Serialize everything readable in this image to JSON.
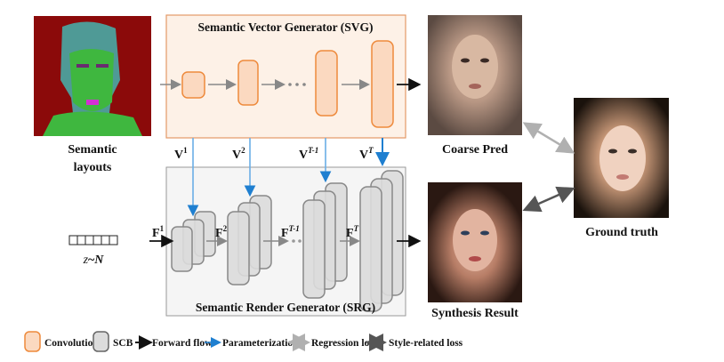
{
  "inputs": {
    "semantic_label_line1": "Semantic",
    "semantic_label_line2": "layouts",
    "noise_var": "z",
    "noise_tilde": "~",
    "noise_dist": "N"
  },
  "svg_module": {
    "title": "Semantic Vector Generator (SVG)"
  },
  "srg_module": {
    "title": "Semantic Render Generator (SRG)"
  },
  "vectors": [
    {
      "base": "V",
      "sup": "1"
    },
    {
      "base": "V",
      "sup": "2"
    },
    {
      "base": "V",
      "sup": "T-1"
    },
    {
      "base": "V",
      "sup": "T"
    }
  ],
  "features": [
    {
      "base": "F",
      "sup": "1"
    },
    {
      "base": "F",
      "sup": "2"
    },
    {
      "base": "F",
      "sup": "T-1"
    },
    {
      "base": "F",
      "sup": "T"
    }
  ],
  "outputs": {
    "coarse": "Coarse Pred",
    "synthesis": "Synthesis Result",
    "ground_truth": "Ground truth"
  },
  "legend": [
    {
      "label": "Convolution",
      "icon": "convolution-box"
    },
    {
      "label": "SCB",
      "icon": "scb-box"
    },
    {
      "label": "Forward flow",
      "icon": "black-arrow"
    },
    {
      "label": "Parameterization",
      "icon": "blue-arrow"
    },
    {
      "label": "Regression loss",
      "icon": "light-gray-double-arrow"
    },
    {
      "label": "Style-related loss",
      "icon": "dark-gray-double-arrow"
    }
  ],
  "colors": {
    "conv_fill": "#fbd9c0",
    "conv_stroke": "#ee8a3c",
    "scb_fill": "#dcdcdc",
    "scb_stroke": "#777777",
    "param": "#1f7fd0",
    "forward": "#111111",
    "regression": "#b0b0b0",
    "style": "#555555"
  }
}
